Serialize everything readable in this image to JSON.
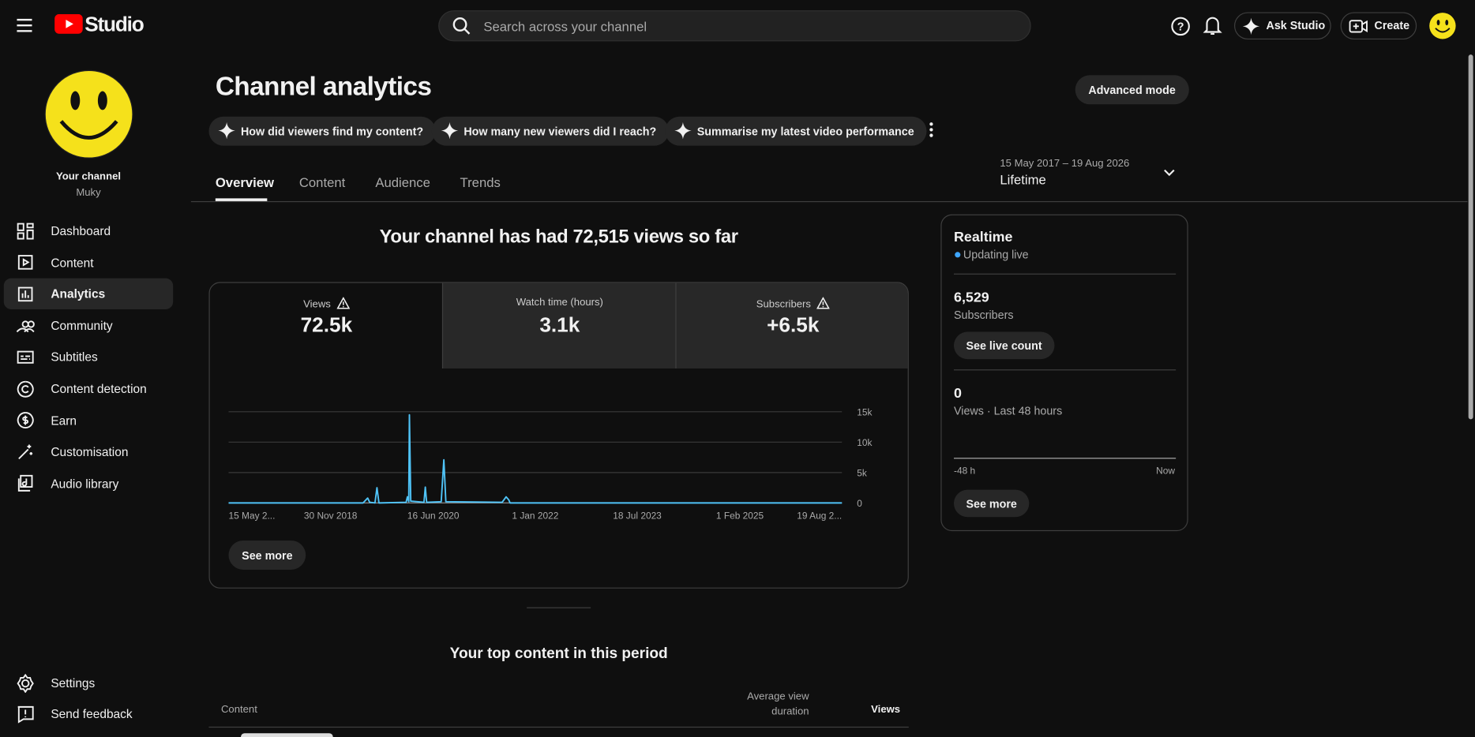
{
  "header": {
    "logo": "Studio",
    "search_placeholder": "Search across your channel",
    "ask": "Ask Studio",
    "create": "Create"
  },
  "sidebar": {
    "channel_label": "Your channel",
    "channel_name": "Muky",
    "nav": [
      "Dashboard",
      "Content",
      "Analytics",
      "Community",
      "Subtitles",
      "Content detection",
      "Earn",
      "Customisation",
      "Audio library"
    ],
    "bottom": [
      "Settings",
      "Send feedback"
    ]
  },
  "main": {
    "title": "Channel analytics",
    "advanced": "Advanced mode",
    "prompts": [
      "How did viewers find my content?",
      "How many new viewers did I reach?",
      "Summarise my latest video performance"
    ],
    "tabs": [
      "Overview",
      "Content",
      "Audience",
      "Trends"
    ],
    "date_range": "15 May 2017 – 19 Aug 2026",
    "period": "Lifetime",
    "headline": "Your channel has had 72,515 views so far",
    "metrics": [
      {
        "label": "Views",
        "value": "72.5k"
      },
      {
        "label": "Watch time (hours)",
        "value": "3.1k"
      },
      {
        "label": "Subscribers",
        "value": "+6.5k"
      }
    ],
    "see_more": "See more",
    "top_content_title": "Your top content in this period",
    "table_headers": [
      "Content",
      "Average view duration",
      "Views"
    ]
  },
  "chart_data": {
    "type": "line",
    "color": "#4fc3f7",
    "x": [
      2017.37,
      2019.4,
      2019.47,
      2019.5,
      2019.58,
      2019.61,
      2019.64,
      2020.05,
      2020.07,
      2020.09,
      2020.1,
      2020.12,
      2020.32,
      2020.34,
      2020.36,
      2020.58,
      2020.62,
      2020.65,
      2021.5,
      2021.56,
      2021.6,
      2021.62,
      2026.63
    ],
    "values": [
      0,
      0,
      800,
      100,
      0,
      2500,
      0,
      100,
      1000,
      200,
      14500,
      300,
      100,
      2600,
      100,
      200,
      7100,
      200,
      100,
      1000,
      500,
      0,
      0
    ],
    "xlim": [
      2017.37,
      2026.63
    ],
    "xticks": [
      {
        "value": 2017.37,
        "label": "15 May 2..."
      },
      {
        "value": 2018.91,
        "label": "30 Nov 2018"
      },
      {
        "value": 2020.46,
        "label": "16 Jun 2020"
      },
      {
        "value": 2022.0,
        "label": "1 Jan 2022"
      },
      {
        "value": 2023.54,
        "label": "18 Jul 2023"
      },
      {
        "value": 2025.09,
        "label": "1 Feb 2025"
      },
      {
        "value": 2026.63,
        "label": "19 Aug 2..."
      }
    ],
    "ylim": [
      0,
      15000
    ],
    "yticks": [
      0,
      {
        "value": 5000,
        "label": "5k"
      },
      {
        "value": 10000,
        "label": "10k"
      },
      {
        "value": 15000,
        "label": "15k"
      }
    ],
    "grid": true
  },
  "realtime": {
    "title": "Realtime",
    "status": "Updating live",
    "subscribers": "6,529",
    "subscribers_label": "Subscribers",
    "see_live": "See live count",
    "views": "0",
    "views_label": "Views · Last 48 hours",
    "axis_start": "-48 h",
    "axis_end": "Now",
    "see_more": "See more"
  }
}
